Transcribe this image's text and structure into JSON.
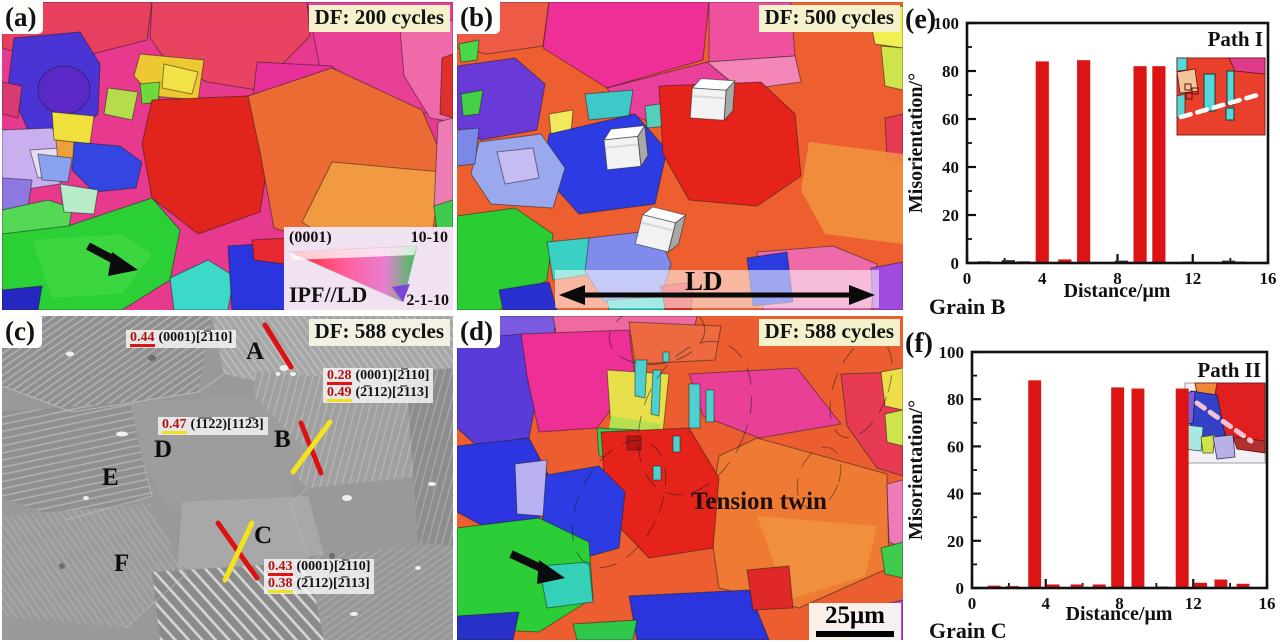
{
  "figure": {
    "panels": {
      "a": {
        "tag": "(a)",
        "df_label": "DF: 200 cycles",
        "legend": {
          "plane": "(0001)",
          "corner_tr": "10-10",
          "corner_br": "2-1-10",
          "title": "IPF//LD"
        }
      },
      "b": {
        "tag": "(b)",
        "df_label": "DF: 500 cycles",
        "direction_label": "LD"
      },
      "c": {
        "tag": "(c)",
        "df_label": "DF: 588 cycles",
        "grains": {
          "A": "A",
          "B": "B",
          "C": "C",
          "D": "D",
          "E": "E",
          "F": "F"
        },
        "sf": [
          {
            "value": "0.44",
            "system": "(0001)[2̅110]",
            "underline": "#e01414"
          },
          {
            "value": "0.28",
            "system": "(0001)[2̅110]",
            "underline": "#e01414"
          },
          {
            "value": "0.49",
            "system": "(2̅112)[2̅113]",
            "underline": "#f0e01e"
          },
          {
            "value": "0.47",
            "system": "(1̅1̅22)[112̅3]",
            "underline": "#f0e01e"
          },
          {
            "value": "0.43",
            "system": "(0001)[2̅110]",
            "underline": "#e01414"
          },
          {
            "value": "0.38",
            "system": "(2̅112)[2̅113]",
            "underline": "#f0e01e"
          }
        ]
      },
      "d": {
        "tag": "(d)",
        "df_label": "DF: 588 cycles",
        "annotation": "Tension twin",
        "scale_bar": "25μm"
      }
    },
    "colors": {
      "bar_red": "#dc1414",
      "slip_line_red": "#dd1111",
      "slip_line_yellow": "#f2e220",
      "badge_background": "#f6f1cd"
    }
  },
  "chart_data": [
    {
      "id": "e",
      "type": "bar",
      "panel_tag": "(e)",
      "inset_label": "Path I",
      "footer": "Grain B",
      "xlabel": "Distance/μm",
      "ylabel": "Misorientation/°",
      "xlim": [
        0,
        16
      ],
      "ylim": [
        0,
        100
      ],
      "xticks": [
        0,
        4,
        8,
        12,
        16
      ],
      "yticks": [
        0,
        20,
        40,
        60,
        80,
        100
      ],
      "minor_x": 2,
      "minor_y": 10,
      "grid": false,
      "bar_width": 0.7,
      "bar_color": "#dc1414",
      "bars": [
        [
          0.9,
          0.7,
          "#3a3032"
        ],
        [
          2.2,
          1.2,
          "#3a3032"
        ],
        [
          3.0,
          0.7,
          "#3a3032"
        ],
        [
          4.0,
          84
        ],
        [
          5.2,
          1.5
        ],
        [
          6.2,
          84.5
        ],
        [
          8.2,
          1.0,
          "#3a3032"
        ],
        [
          9.2,
          82
        ],
        [
          10.2,
          82
        ],
        [
          11.8,
          0.5,
          "#3a3032"
        ],
        [
          13.9,
          1.0,
          "#3a3032"
        ],
        [
          14.5,
          0.6,
          "#3a3032"
        ]
      ]
    },
    {
      "id": "f",
      "type": "bar",
      "panel_tag": "(f)",
      "inset_label": "Path II",
      "footer": "Grain C",
      "xlabel": "Distance/μm",
      "ylabel": "Misorientation/°",
      "xlim": [
        0,
        16
      ],
      "ylim": [
        0,
        100
      ],
      "xticks": [
        0,
        4,
        8,
        12,
        16
      ],
      "yticks": [
        0,
        20,
        40,
        60,
        80,
        100
      ],
      "minor_x": 2,
      "minor_y": 10,
      "grid": false,
      "bar_width": 0.7,
      "bar_color": "#dc1414",
      "bars": [
        [
          1.2,
          1.0
        ],
        [
          2.2,
          0.8
        ],
        [
          3.4,
          88
        ],
        [
          4.4,
          1.5
        ],
        [
          5.7,
          1.5
        ],
        [
          6.9,
          1.5
        ],
        [
          7.9,
          85
        ],
        [
          9.0,
          84.5
        ],
        [
          10.3,
          0.6,
          "#3a3032"
        ],
        [
          11.4,
          84.5
        ],
        [
          12.4,
          2.2
        ],
        [
          13.5,
          3.6
        ],
        [
          14.7,
          1.8
        ]
      ]
    }
  ]
}
